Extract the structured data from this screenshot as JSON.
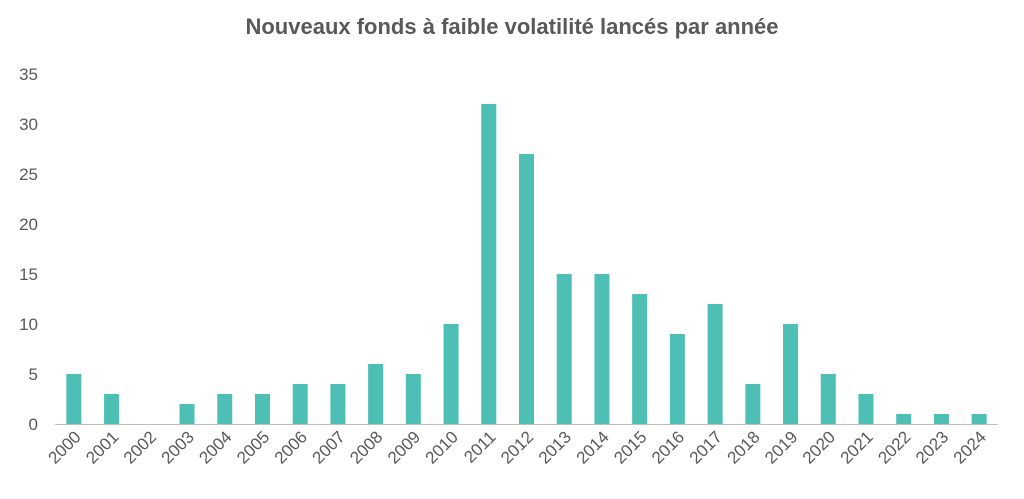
{
  "chart_data": {
    "type": "bar",
    "title": "Nouveaux fonds à faible volatilité lancés par année",
    "xlabel": "",
    "ylabel": "",
    "ylim": [
      0,
      35
    ],
    "yticks": [
      0,
      5,
      10,
      15,
      20,
      25,
      30,
      35
    ],
    "grid": false,
    "legend": "none",
    "colors": {
      "bar": "#4dbfb5",
      "axis": "#bfbfbf",
      "text": "#595959"
    },
    "categories": [
      "2000",
      "2001",
      "2002",
      "2003",
      "2004",
      "2005",
      "2006",
      "2007",
      "2008",
      "2009",
      "2010",
      "2011",
      "2012",
      "2013",
      "2014",
      "2015",
      "2016",
      "2017",
      "2018",
      "2019",
      "2020",
      "2021",
      "2022",
      "2023",
      "2024"
    ],
    "values": [
      5,
      3,
      0,
      2,
      3,
      3,
      4,
      4,
      6,
      5,
      10,
      32,
      27,
      15,
      15,
      13,
      9,
      12,
      4,
      10,
      5,
      3,
      1,
      1,
      1
    ]
  }
}
